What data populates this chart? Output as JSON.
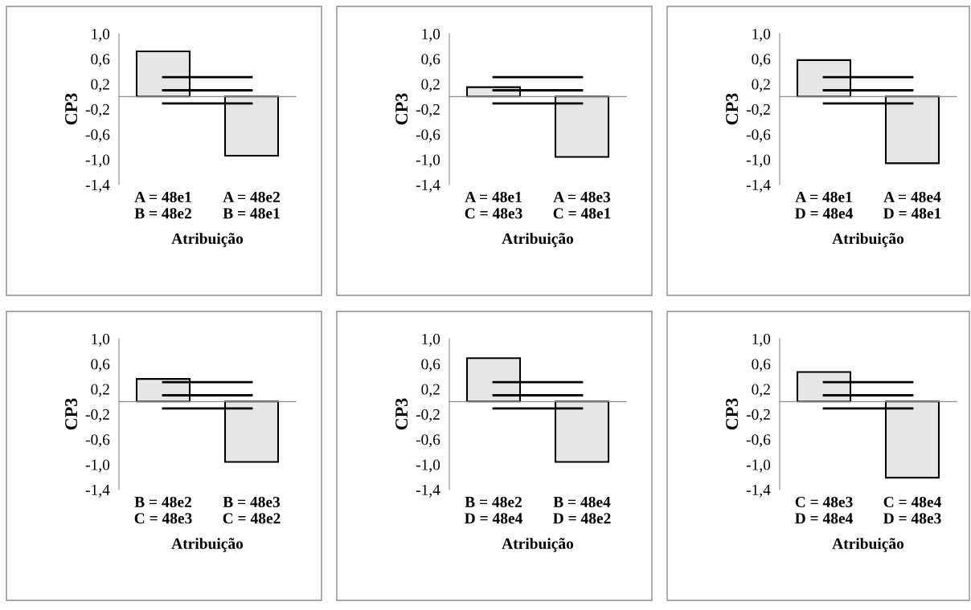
{
  "chart_data": [
    {
      "type": "bar",
      "ylabel": "CP3",
      "xlabel": "Atribuição",
      "categories": [
        "A = 48e1\nB = 48e2",
        "A = 48e2\nB = 48e1"
      ],
      "ylim": [
        -1.4,
        1.0
      ],
      "yticks": [
        {
          "value": 1.0,
          "label": "1,0"
        },
        {
          "value": 0.6,
          "label": "0,6"
        },
        {
          "value": 0.2,
          "label": "0,2"
        },
        {
          "value": -0.2,
          "label": "-0,2"
        },
        {
          "value": -0.6,
          "label": "-0,6"
        },
        {
          "value": -1.0,
          "label": "-1,0"
        },
        {
          "value": -1.4,
          "label": "-1,4"
        }
      ],
      "series": [
        {
          "color": "#e6e6e6",
          "values": [
            0.72,
            -0.94
          ]
        },
        {
          "type": "line",
          "color": "#000000",
          "values": [
            0.31,
            0.31
          ]
        },
        {
          "type": "line",
          "color": "#000000",
          "values": [
            0.1,
            0.1
          ]
        },
        {
          "type": "line",
          "color": "#000000",
          "values": [
            -0.11,
            -0.11
          ]
        }
      ]
    },
    {
      "type": "bar",
      "ylabel": "CP3",
      "xlabel": "Atribuição",
      "categories": [
        "A = 48e1\nC = 48e3",
        "A = 48e3\nC = 48e1"
      ],
      "ylim": [
        -1.4,
        1.0
      ],
      "yticks": [
        {
          "value": 1.0,
          "label": "1,0"
        },
        {
          "value": 0.6,
          "label": "0,6"
        },
        {
          "value": 0.2,
          "label": "0,2"
        },
        {
          "value": -0.2,
          "label": "-0,2"
        },
        {
          "value": -0.6,
          "label": "-0,6"
        },
        {
          "value": -1.0,
          "label": "-1,0"
        },
        {
          "value": -1.4,
          "label": "-1,4"
        }
      ],
      "series": [
        {
          "color": "#e6e6e6",
          "values": [
            0.15,
            -0.96
          ]
        },
        {
          "type": "line",
          "color": "#000000",
          "values": [
            0.31,
            0.31
          ]
        },
        {
          "type": "line",
          "color": "#000000",
          "values": [
            0.1,
            0.1
          ]
        },
        {
          "type": "line",
          "color": "#000000",
          "values": [
            -0.11,
            -0.11
          ]
        }
      ]
    },
    {
      "type": "bar",
      "ylabel": "CP3",
      "xlabel": "Atribuição",
      "categories": [
        "A = 48e1\nD = 48e4",
        "A = 48e4\nD = 48e1"
      ],
      "ylim": [
        -1.4,
        1.0
      ],
      "yticks": [
        {
          "value": 1.0,
          "label": "1,0"
        },
        {
          "value": 0.6,
          "label": "0,6"
        },
        {
          "value": 0.2,
          "label": "0,2"
        },
        {
          "value": -0.2,
          "label": "-0,2"
        },
        {
          "value": -0.6,
          "label": "-0,6"
        },
        {
          "value": -1.0,
          "label": "-1,0"
        },
        {
          "value": -1.4,
          "label": "-1,4"
        }
      ],
      "series": [
        {
          "color": "#e6e6e6",
          "values": [
            0.58,
            -1.06
          ]
        },
        {
          "type": "line",
          "color": "#000000",
          "values": [
            0.31,
            0.31
          ]
        },
        {
          "type": "line",
          "color": "#000000",
          "values": [
            0.1,
            0.1
          ]
        },
        {
          "type": "line",
          "color": "#000000",
          "values": [
            -0.11,
            -0.11
          ]
        }
      ]
    },
    {
      "type": "bar",
      "ylabel": "CP3",
      "xlabel": "Atribuição",
      "categories": [
        "B = 48e2\nC = 48e3",
        "B = 48e3\nC = 48e2"
      ],
      "ylim": [
        -1.4,
        1.0
      ],
      "yticks": [
        {
          "value": 1.0,
          "label": "1,0"
        },
        {
          "value": 0.6,
          "label": "0,6"
        },
        {
          "value": 0.2,
          "label": "0,2"
        },
        {
          "value": -0.2,
          "label": "-0,2"
        },
        {
          "value": -0.6,
          "label": "-0,6"
        },
        {
          "value": -1.0,
          "label": "-1,0"
        },
        {
          "value": -1.4,
          "label": "-1,4"
        }
      ],
      "series": [
        {
          "color": "#e6e6e6",
          "values": [
            0.36,
            -0.96
          ]
        },
        {
          "type": "line",
          "color": "#000000",
          "values": [
            0.31,
            0.31
          ]
        },
        {
          "type": "line",
          "color": "#000000",
          "values": [
            0.1,
            0.1
          ]
        },
        {
          "type": "line",
          "color": "#000000",
          "values": [
            -0.11,
            -0.11
          ]
        }
      ]
    },
    {
      "type": "bar",
      "ylabel": "CP3",
      "xlabel": "Atribuição",
      "categories": [
        "B = 48e2\nD = 48e4",
        "B = 48e4\nD = 48e2"
      ],
      "ylim": [
        -1.4,
        1.0
      ],
      "yticks": [
        {
          "value": 1.0,
          "label": "1,0"
        },
        {
          "value": 0.6,
          "label": "0,6"
        },
        {
          "value": 0.2,
          "label": "0,2"
        },
        {
          "value": -0.2,
          "label": "-0,2"
        },
        {
          "value": -0.6,
          "label": "-0,6"
        },
        {
          "value": -1.0,
          "label": "-1,0"
        },
        {
          "value": -1.4,
          "label": "-1,4"
        }
      ],
      "series": [
        {
          "color": "#e6e6e6",
          "values": [
            0.69,
            -0.96
          ]
        },
        {
          "type": "line",
          "color": "#000000",
          "values": [
            0.31,
            0.31
          ]
        },
        {
          "type": "line",
          "color": "#000000",
          "values": [
            0.1,
            0.1
          ]
        },
        {
          "type": "line",
          "color": "#000000",
          "values": [
            -0.11,
            -0.11
          ]
        }
      ]
    },
    {
      "type": "bar",
      "ylabel": "CP3",
      "xlabel": "Atribuição",
      "categories": [
        "C = 48e3\nD = 48e4",
        "C = 48e4\nD = 48e3"
      ],
      "ylim": [
        -1.4,
        1.0
      ],
      "yticks": [
        {
          "value": 1.0,
          "label": "1,0"
        },
        {
          "value": 0.6,
          "label": "0,6"
        },
        {
          "value": 0.2,
          "label": "0,2"
        },
        {
          "value": -0.2,
          "label": "-0,2"
        },
        {
          "value": -0.6,
          "label": "-0,6"
        },
        {
          "value": -1.0,
          "label": "-1,0"
        },
        {
          "value": -1.4,
          "label": "-1,4"
        }
      ],
      "series": [
        {
          "color": "#e6e6e6",
          "values": [
            0.47,
            -1.21
          ]
        },
        {
          "type": "line",
          "color": "#000000",
          "values": [
            0.31,
            0.31
          ]
        },
        {
          "type": "line",
          "color": "#000000",
          "values": [
            0.1,
            0.1
          ]
        },
        {
          "type": "line",
          "color": "#000000",
          "values": [
            -0.11,
            -0.11
          ]
        }
      ]
    }
  ]
}
